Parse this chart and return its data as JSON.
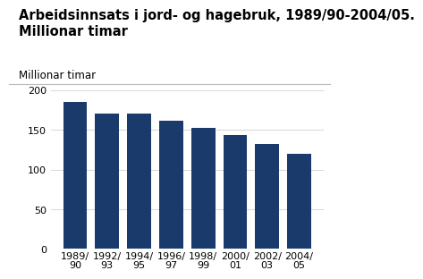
{
  "title_line1": "Arbeidsinnsats i jord- og hagebruk, 1989/90-2004/05.",
  "title_line2": "Millionar timar",
  "ylabel": "Millionar timar",
  "categories": [
    "1989/\n90",
    "1992/\n93",
    "1994/\n95",
    "1996/\n97",
    "1998/\n99",
    "2000/\n01",
    "2002/\n03",
    "2004/\n05"
  ],
  "values": [
    185,
    171,
    170,
    161,
    153,
    143,
    132,
    120
  ],
  "bar_color": "#1a3a6b",
  "ylim": [
    0,
    200
  ],
  "yticks": [
    0,
    50,
    100,
    150,
    200
  ],
  "background_color": "#ffffff",
  "title_fontsize": 10.5,
  "ylabel_fontsize": 8.5,
  "tick_fontsize": 8
}
